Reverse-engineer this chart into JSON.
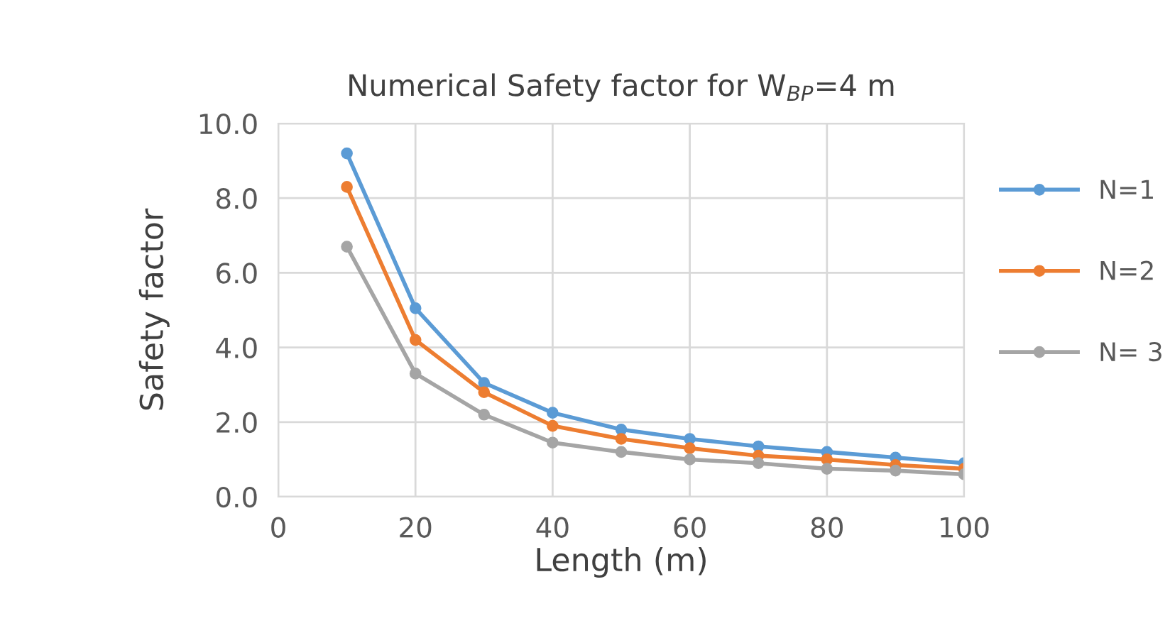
{
  "chart_data": {
    "type": "line",
    "title": "Numerical Safety factor for W$_{BP}$=4 m",
    "xlabel": "Length (m)",
    "ylabel": "Safety factor",
    "x": [
      10,
      20,
      30,
      40,
      50,
      60,
      70,
      80,
      90,
      100
    ],
    "series": [
      {
        "name": "N=1",
        "color": "#5b9bd5",
        "values": [
          9.2,
          5.05,
          3.05,
          2.25,
          1.8,
          1.55,
          1.35,
          1.2,
          1.05,
          0.9
        ]
      },
      {
        "name": "N=2",
        "color": "#ed7d31",
        "values": [
          8.3,
          4.2,
          2.8,
          1.9,
          1.55,
          1.3,
          1.1,
          1.0,
          0.85,
          0.75
        ]
      },
      {
        "name": "N= 3",
        "color": "#a5a5a5",
        "values": [
          6.7,
          3.3,
          2.2,
          1.45,
          1.2,
          1.0,
          0.9,
          0.75,
          0.7,
          0.6
        ]
      }
    ],
    "xlim": [
      0,
      100
    ],
    "xticks": [
      0,
      20,
      40,
      60,
      80,
      100
    ],
    "ylim": [
      0,
      10
    ],
    "yticks": [
      {
        "value": 0,
        "label": "0.0"
      },
      {
        "value": 2,
        "label": "2.0"
      },
      {
        "value": 4,
        "label": "4.0"
      },
      {
        "value": 6,
        "label": "6.0"
      },
      {
        "value": 8,
        "label": "8.0"
      },
      {
        "value": 10,
        "label": "10.0"
      }
    ],
    "grid": true,
    "legend": "right",
    "marker": "circle",
    "line_style": "solid"
  }
}
